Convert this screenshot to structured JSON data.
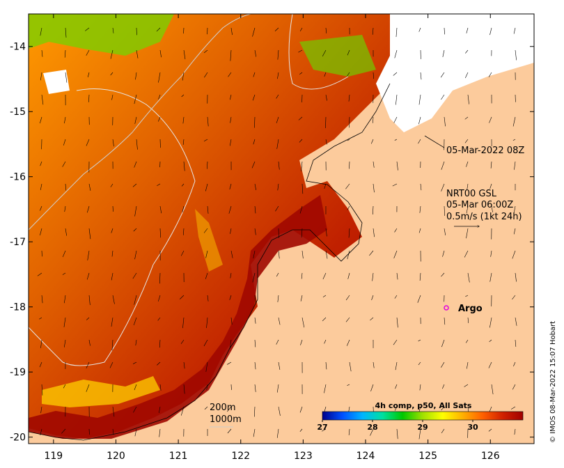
{
  "map": {
    "x_ticks": [
      "119",
      "120",
      "121",
      "122",
      "123",
      "124",
      "125",
      "126"
    ],
    "y_ticks": [
      "-14",
      "-15",
      "-16",
      "-17",
      "-18",
      "-19",
      "-20"
    ],
    "lon_range": [
      118.6,
      126.7
    ],
    "lat_range": [
      -20.1,
      -13.5
    ],
    "colors": {
      "land": "#fccb9c",
      "ocean_warm": "#a80c00",
      "cloud": "#ffffff"
    }
  },
  "annotations": {
    "timestamp_label": "05-Mar-2022 08Z",
    "current_source": "NRT00 GSL",
    "current_time": "05-Mar 06:00Z",
    "current_scale": "0.5m/s (1kt 24h)",
    "argo_label": "Argo",
    "contour_200": "200m",
    "contour_1000": "1000m"
  },
  "colorbar": {
    "title": "4h comp, p50, All Sats",
    "ticks": [
      "27",
      "28",
      "29",
      "30"
    ],
    "range": [
      27,
      31
    ],
    "stops": [
      "#00008b",
      "#0050ff",
      "#00b4ff",
      "#00e0a0",
      "#00c800",
      "#a0e000",
      "#ffff00",
      "#ffb000",
      "#ff6000",
      "#d02000",
      "#a00000"
    ]
  },
  "credit": "© IMOS 08-Mar-2022 15:07 Hobart"
}
